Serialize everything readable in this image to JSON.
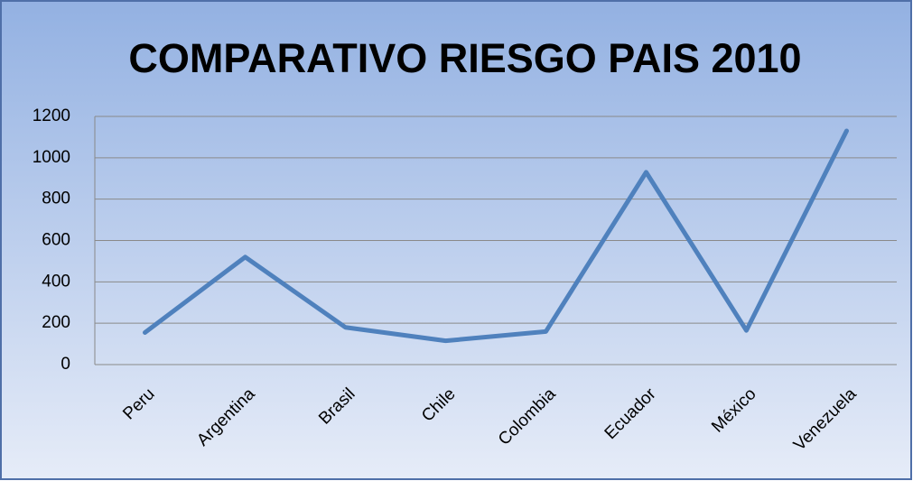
{
  "chart_data": {
    "type": "line",
    "title": "COMPARATIVO RIESGO PAIS 2010",
    "categories": [
      "Peru",
      "Argentina",
      "Brasil",
      "Chile",
      "Colombia",
      "Ecuador",
      "México",
      "Venezuela"
    ],
    "values": [
      155,
      520,
      180,
      115,
      160,
      930,
      165,
      1130
    ],
    "color": "#4f81bd",
    "ylim": [
      0,
      1200
    ],
    "yticks": [
      0,
      200,
      400,
      600,
      800,
      1000,
      1200
    ],
    "grid": true
  }
}
